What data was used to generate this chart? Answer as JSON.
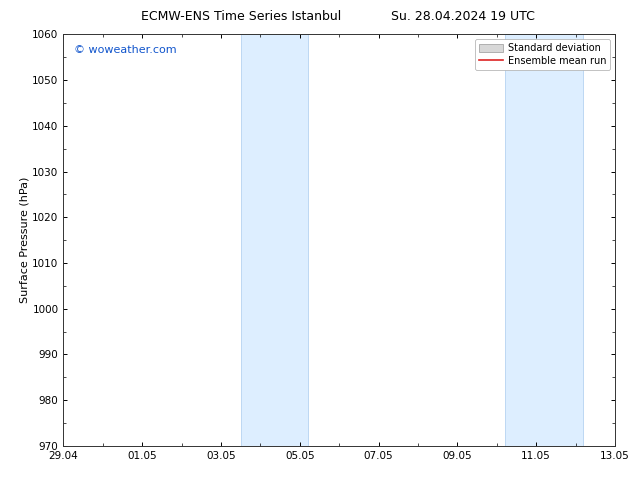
{
  "title_left": "ECMW-ENS Time Series Istanbul",
  "title_right": "Su. 28.04.2024 19 UTC",
  "ylabel": "Surface Pressure (hPa)",
  "ylim": [
    970,
    1060
  ],
  "yticks": [
    970,
    980,
    990,
    1000,
    1010,
    1020,
    1030,
    1040,
    1050,
    1060
  ],
  "xtick_labels": [
    "29.04",
    "01.05",
    "03.05",
    "05.05",
    "07.05",
    "09.05",
    "11.05",
    "13.05"
  ],
  "xtick_positions": [
    0,
    2,
    4,
    6,
    8,
    10,
    12,
    14
  ],
  "xlim": [
    0,
    14
  ],
  "shaded_bands": [
    {
      "x_start": 4.5,
      "x_end": 6.2
    },
    {
      "x_start": 11.2,
      "x_end": 13.2
    }
  ],
  "shaded_color": "#ddeeff",
  "shaded_edge_color": "#aaccee",
  "watermark_text": "© woweather.com",
  "watermark_color": "#1155cc",
  "legend_std_label": "Standard deviation",
  "legend_mean_label": "Ensemble mean run",
  "legend_std_color": "#d8d8d8",
  "legend_mean_color": "#dd2222",
  "background_color": "#ffffff",
  "title_fontsize": 9,
  "ylabel_fontsize": 8,
  "tick_fontsize": 7.5,
  "watermark_fontsize": 8,
  "legend_fontsize": 7
}
